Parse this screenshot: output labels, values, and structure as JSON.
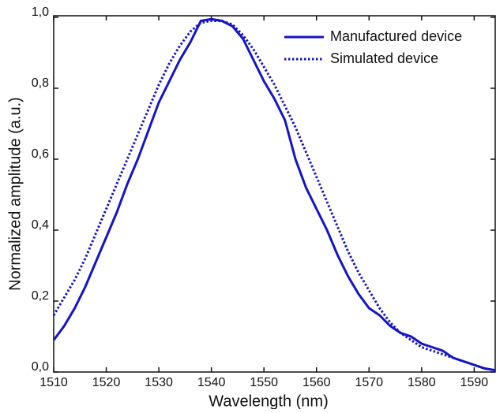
{
  "chart_data": {
    "type": "line",
    "xlabel": "Wavelength (nm)",
    "ylabel": "Normalized amplitude (a.u.)",
    "x": [
      1510,
      1512,
      1514,
      1516,
      1518,
      1520,
      1522,
      1524,
      1526,
      1528,
      1530,
      1532,
      1534,
      1536,
      1538,
      1540,
      1542,
      1544,
      1546,
      1548,
      1550,
      1552,
      1554,
      1556,
      1558,
      1560,
      1562,
      1564,
      1566,
      1568,
      1570,
      1572,
      1574,
      1576,
      1578,
      1580,
      1582,
      1584,
      1586,
      1588,
      1590,
      1592,
      1594
    ],
    "series": [
      {
        "name": "Manufactured device",
        "color": "#1414c8",
        "style": "solid",
        "values": [
          0.09,
          0.13,
          0.18,
          0.24,
          0.31,
          0.38,
          0.45,
          0.53,
          0.6,
          0.68,
          0.76,
          0.82,
          0.88,
          0.93,
          0.99,
          0.995,
          0.99,
          0.975,
          0.94,
          0.88,
          0.82,
          0.77,
          0.71,
          0.6,
          0.52,
          0.46,
          0.4,
          0.33,
          0.27,
          0.22,
          0.18,
          0.16,
          0.13,
          0.11,
          0.1,
          0.08,
          0.07,
          0.06,
          0.04,
          0.03,
          0.02,
          0.01,
          0.005
        ]
      },
      {
        "name": "Simulated device",
        "color": "#1414c8",
        "style": "dotted",
        "values": [
          0.16,
          0.21,
          0.26,
          0.32,
          0.39,
          0.46,
          0.53,
          0.6,
          0.67,
          0.74,
          0.81,
          0.87,
          0.92,
          0.96,
          0.985,
          0.99,
          0.99,
          0.98,
          0.95,
          0.91,
          0.86,
          0.81,
          0.75,
          0.69,
          0.62,
          0.55,
          0.48,
          0.41,
          0.34,
          0.28,
          0.23,
          0.18,
          0.14,
          0.11,
          0.09,
          0.07,
          0.06,
          0.05,
          0.04,
          0.03,
          0.02,
          0.01,
          0.005
        ]
      }
    ],
    "xlim": [
      1510,
      1594
    ],
    "xticks": [
      1510,
      1520,
      1530,
      1540,
      1550,
      1560,
      1570,
      1580,
      1590
    ],
    "ylim": [
      0,
      1.0
    ],
    "yticks": [
      {
        "value": 0,
        "label": "0,0"
      },
      {
        "value": 0.2,
        "label": "0,2"
      },
      {
        "value": 0.4,
        "label": "0,4"
      },
      {
        "value": 0.6,
        "label": "0,6"
      },
      {
        "value": 0.8,
        "label": "0,8"
      },
      {
        "value": 1.0,
        "label": "1,0"
      }
    ],
    "legend": "upper right"
  }
}
